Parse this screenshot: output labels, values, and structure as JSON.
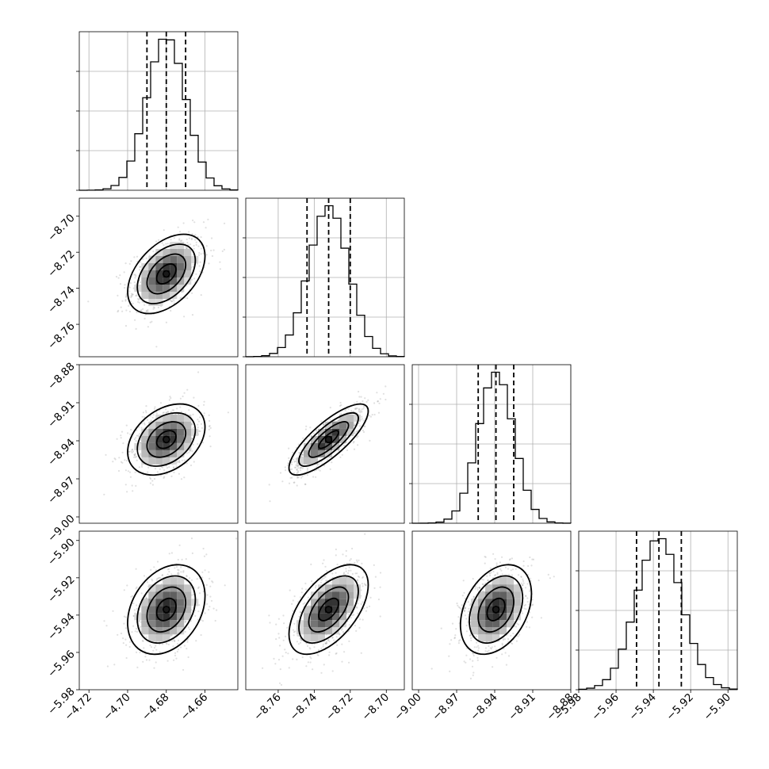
{
  "chart_data": {
    "type": "corner",
    "params": [
      {
        "mean": -4.68,
        "sd": 0.01,
        "q": [
          -4.69,
          -4.68,
          -4.67
        ],
        "lim": [
          -4.725,
          -4.643
        ],
        "ticks": [
          -4.72,
          -4.7,
          -4.68,
          -4.66
        ],
        "tick_labels": [
          "−4.72",
          "−4.70",
          "−4.68",
          "−4.66"
        ]
      },
      {
        "mean": -8.732,
        "sd": 0.011,
        "q": [
          -8.744,
          -8.732,
          -8.72
        ],
        "lim": [
          -8.778,
          -8.69
        ],
        "ticks": [
          -8.76,
          -8.74,
          -8.72,
          -8.7
        ],
        "tick_labels": [
          "−8.76",
          "−8.74",
          "−8.72",
          "−8.70"
        ]
      },
      {
        "mean": -8.939,
        "sd": 0.014,
        "q": [
          -8.953,
          -8.939,
          -8.925
        ],
        "lim": [
          -9.005,
          -8.88
        ],
        "ticks": [
          -9.0,
          -8.97,
          -8.94,
          -8.91,
          -8.88
        ],
        "tick_labels": [
          "−9.00",
          "−8.97",
          "−8.94",
          "−8.91",
          "−8.88"
        ]
      },
      {
        "mean": -5.937,
        "sd": 0.012,
        "q": [
          -5.949,
          -5.937,
          -5.925
        ],
        "lim": [
          -5.98,
          -5.895
        ],
        "ticks": [
          -5.98,
          -5.96,
          -5.94,
          -5.92,
          -5.9
        ],
        "tick_labels": [
          "−5.98",
          "−5.96",
          "−5.94",
          "−5.92",
          "−5.90"
        ]
      }
    ],
    "correlations": [
      [
        1.0,
        0.45,
        0.35,
        0.3
      ],
      [
        0.45,
        1.0,
        0.8,
        0.55
      ],
      [
        0.35,
        0.8,
        1.0,
        0.35
      ],
      [
        0.3,
        0.55,
        0.35,
        1.0
      ]
    ],
    "hist_bins": 20,
    "contour_levels_sigma": [
      0.5,
      1.0,
      1.5,
      2.0
    ],
    "quantiles": [
      0.16,
      0.5,
      0.84
    ],
    "grid": true
  }
}
